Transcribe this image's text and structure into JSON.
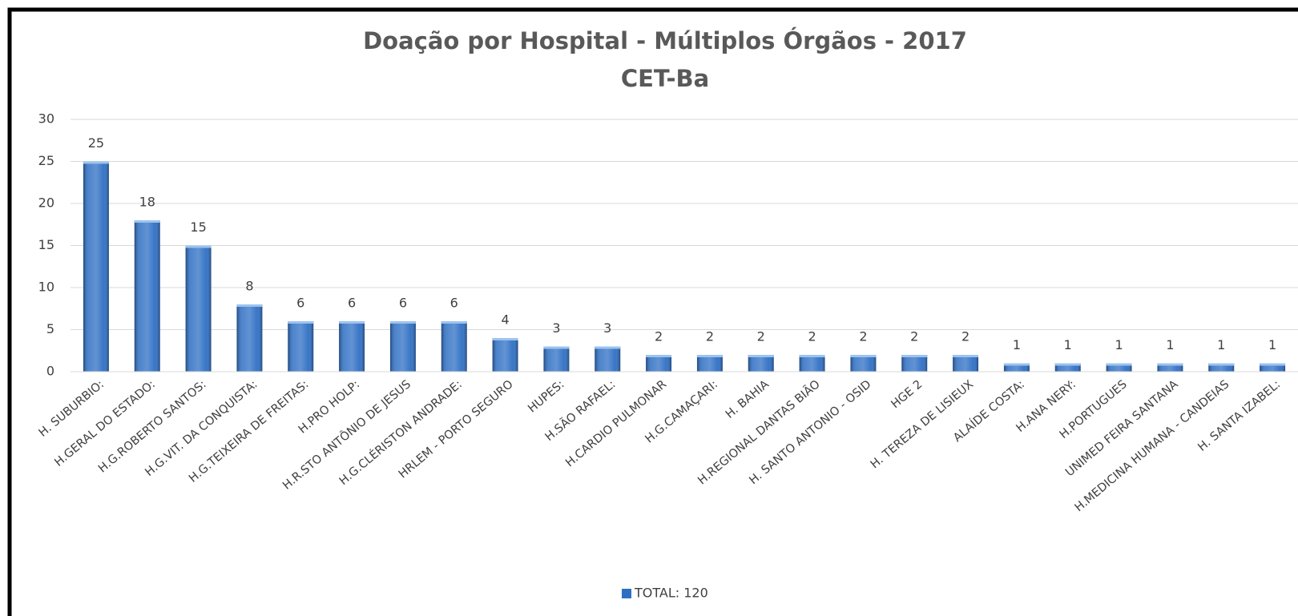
{
  "chart_data": {
    "type": "bar",
    "title": "Doação por Hospital - Múltiplos Órgãos - 2017",
    "subtitle": "CET-Ba",
    "categories": [
      "H. SUBURBIO:",
      "H.GERAL DO ESTADO:",
      "H.G.ROBERTO SANTOS:",
      "H.G.VIT. DA CONQUISTA:",
      "H.G.TEIXEIRA DE FREITAS:",
      "H.PRO HOLP:",
      "H.R.STO ANTÔNIO DE JESUS",
      "H.G.CLÉRISTON ANDRADE:",
      "HRLEM - PORTO SEGURO",
      "HUPES:",
      "H.SÃO RAFAEL:",
      "H.CARDIO PULMONAR",
      "H.G.CAMAÇARI:",
      "H. BAHIA",
      "H.REGIONAL DANTAS BIÃO",
      "H. SANTO ANTONIO - OSID",
      "HGE 2",
      "H. TEREZA DE LISIEUX",
      "ALAÍDE COSTA:",
      "H.ANA NERY:",
      "H.PORTUGUES",
      "UNIMED FEIRA SANTANA",
      "H.MEDICINA HUMANA - CANDEIAS",
      "H. SANTA IZABEL:"
    ],
    "series": [
      {
        "name": "TOTAL: 120",
        "color": "#2e6fc4",
        "values": [
          25,
          18,
          15,
          8,
          6,
          6,
          6,
          6,
          4,
          3,
          3,
          2,
          2,
          2,
          2,
          2,
          2,
          2,
          1,
          1,
          1,
          1,
          1,
          1
        ]
      }
    ],
    "ylim": [
      0,
      30
    ],
    "yticks": [
      0,
      5,
      10,
      15,
      20,
      25,
      30
    ],
    "grid": true,
    "data_labels": true,
    "legend": "bottom"
  }
}
